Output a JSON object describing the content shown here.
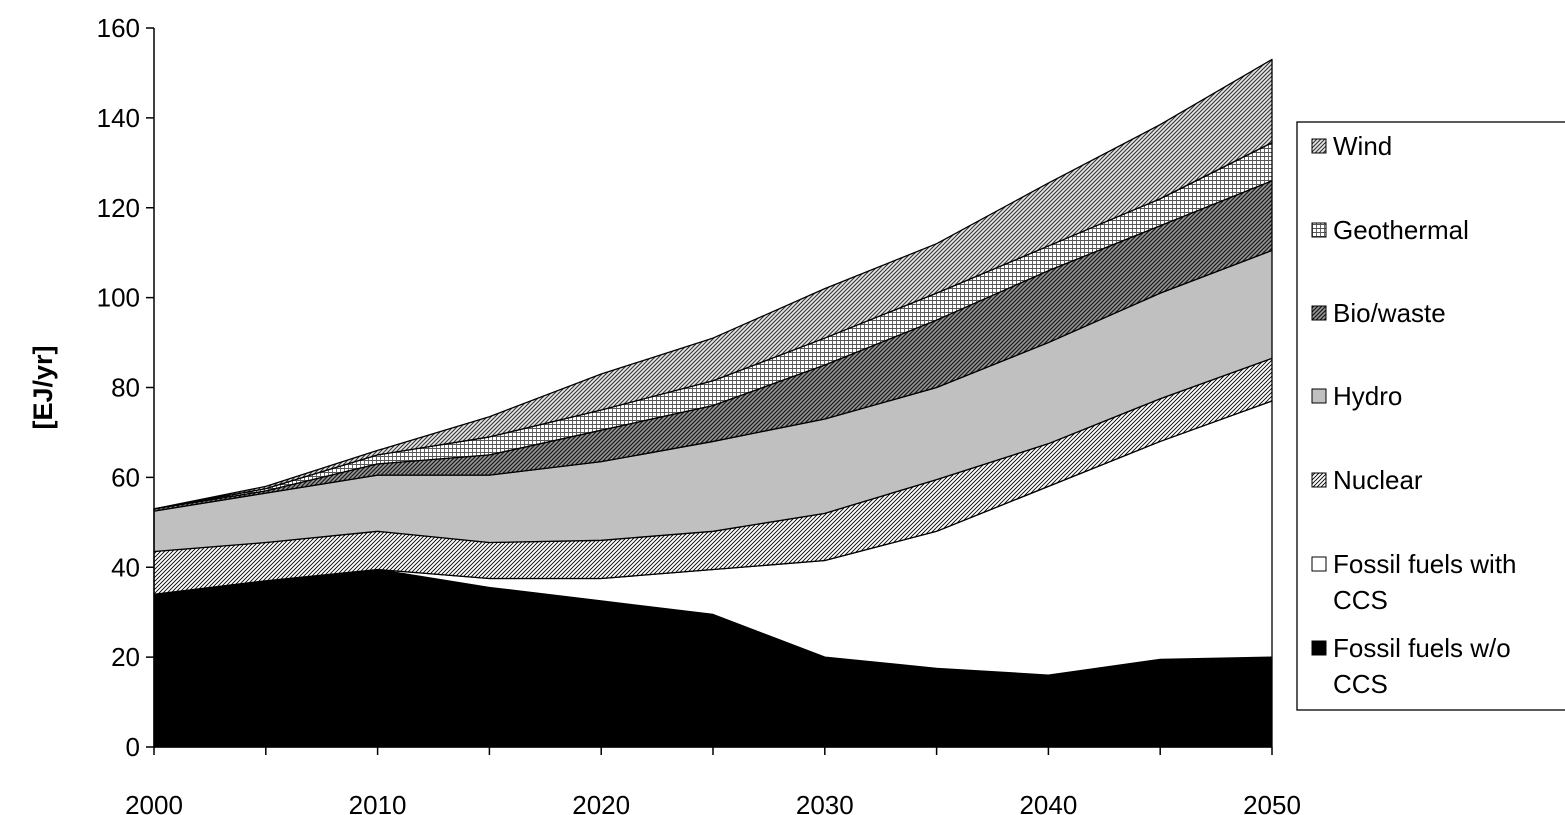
{
  "chart_data": {
    "type": "area",
    "stacked": true,
    "title": "",
    "xlabel": "",
    "ylabel": "[EJ/yr]",
    "x": [
      2000,
      2005,
      2010,
      2015,
      2020,
      2025,
      2030,
      2035,
      2040,
      2045,
      2050
    ],
    "x_ticks": [
      "2000",
      "2010",
      "2020",
      "2030",
      "2040",
      "2050"
    ],
    "y_ticks": [
      "0",
      "20",
      "40",
      "60",
      "80",
      "100",
      "120",
      "140",
      "160"
    ],
    "xlim": [
      2000,
      2050
    ],
    "ylim": [
      0,
      160
    ],
    "grid": false,
    "legend_position": "right",
    "series": [
      {
        "name": "Fossil fuels w/o CCS",
        "fill": "solid-black",
        "values": [
          34,
          37,
          39.5,
          35.5,
          32.5,
          29.5,
          20,
          17.5,
          16,
          19.5,
          20
        ]
      },
      {
        "name": "Fossil fuels with CCS",
        "fill": "white",
        "values": [
          0,
          0,
          0,
          2,
          5,
          10,
          21.5,
          30.5,
          42,
          48.5,
          57
        ]
      },
      {
        "name": "Nuclear",
        "fill": "diagonal-fine",
        "values": [
          9.5,
          8.5,
          8.5,
          8,
          8.5,
          8.5,
          10.5,
          11.5,
          9.5,
          9.5,
          9.5
        ]
      },
      {
        "name": "Hydro",
        "fill": "light-gray",
        "values": [
          9,
          11,
          12.5,
          15,
          17.5,
          20,
          21,
          20.5,
          22.5,
          23.5,
          24
        ]
      },
      {
        "name": "Bio/waste",
        "fill": "diagonal-dark",
        "values": [
          0.5,
          0.5,
          2.5,
          4.5,
          7,
          8,
          12,
          15,
          16,
          15,
          15.5
        ]
      },
      {
        "name": "Geothermal",
        "fill": "grid",
        "values": [
          0,
          0.5,
          2,
          4,
          4.5,
          5.5,
          6,
          6,
          5.5,
          6,
          8.5
        ]
      },
      {
        "name": "Wind",
        "fill": "diagonal-medium",
        "values": [
          0,
          0.5,
          1,
          4.5,
          8,
          9.5,
          11,
          11,
          14,
          16.5,
          18.5
        ]
      }
    ]
  },
  "legend": {
    "items": [
      {
        "lines": [
          "Wind"
        ],
        "fill": "diagonal-medium"
      },
      {
        "lines": [
          "Geothermal"
        ],
        "fill": "grid"
      },
      {
        "lines": [
          "Bio/waste"
        ],
        "fill": "diagonal-dark"
      },
      {
        "lines": [
          "Hydro"
        ],
        "fill": "light-gray"
      },
      {
        "lines": [
          "Nuclear"
        ],
        "fill": "diagonal-fine"
      },
      {
        "lines": [
          "Fossil fuels with",
          "CCS"
        ],
        "fill": "white"
      },
      {
        "lines": [
          "Fossil fuels w/o",
          "CCS"
        ],
        "fill": "solid-black"
      }
    ]
  }
}
